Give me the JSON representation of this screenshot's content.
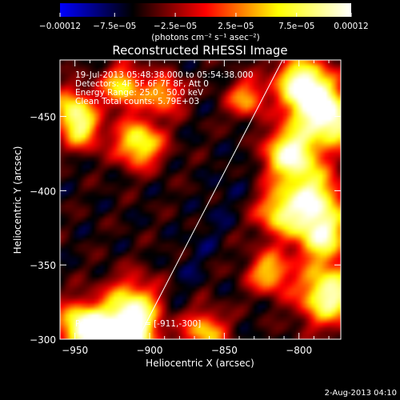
{
  "chart_data": {
    "type": "heatmap",
    "title": "Reconstructed RHESSI Image",
    "xlabel": "Heliocentric X (arcsec)",
    "ylabel": "Heliocentric Y (arcsec)",
    "xlim": [
      -960,
      -772
    ],
    "ylim": [
      -488,
      -300
    ],
    "x_ticks": [
      -950,
      -900,
      -850,
      -800
    ],
    "y_ticks": [
      -300,
      -350,
      -400,
      -450
    ],
    "x_tick_labels": [
      "−950",
      "−900",
      "−850",
      "−800"
    ],
    "y_tick_labels": [
      "−300",
      "−350",
      "−400",
      "−450"
    ],
    "colorbar": {
      "min": -0.00012,
      "max": 0.00012,
      "tick_values": [
        -0.00012,
        -7.5e-05,
        -2.5e-05,
        2.5e-05,
        7.5e-05,
        0.00012
      ],
      "tick_labels": [
        "−0.00012",
        "−7.5e−05",
        "−2.5e−05",
        "2.5e−05",
        "7.5e−05",
        "0.00012"
      ],
      "unit_label": "(photons cm⁻² s⁻¹ asec⁻²)",
      "colors": [
        "#0000ff",
        "#000000",
        "#ff0000",
        "#ffff00",
        "#ffffff"
      ]
    },
    "annotations": [
      "19-Jul-2013 05:48:38.000 to 05:54:38.000",
      "Detectors: 4F 5F 6F 7F 8F, Att 0",
      "Energy Range: 25.0 - 50.0 keV",
      "Clean     Total counts: 5.79E+03"
    ],
    "peak": {
      "label": "Position of Peak = [-911,-300]",
      "x": -911,
      "y": -300
    },
    "limb_line": {
      "x": [
        -908,
        -811
      ],
      "y": [
        -300,
        -488
      ]
    },
    "sources": [
      {
        "x": -914,
        "y": -300,
        "level": 1.0,
        "size": 12
      },
      {
        "x": -912,
        "y": -320,
        "level": 0.7,
        "size": 14
      },
      {
        "x": -948,
        "y": -310,
        "level": 0.6,
        "size": 11
      },
      {
        "x": -937,
        "y": -305,
        "level": 0.45,
        "size": 9
      },
      {
        "x": -952,
        "y": -455,
        "level": 0.55,
        "size": 10
      },
      {
        "x": -907,
        "y": -432,
        "level": 0.7,
        "size": 11
      },
      {
        "x": -918,
        "y": -470,
        "level": 0.55,
        "size": 10
      },
      {
        "x": -945,
        "y": -440,
        "level": 0.4,
        "size": 9
      },
      {
        "x": -863,
        "y": -305,
        "level": 0.45,
        "size": 10
      },
      {
        "x": -890,
        "y": -465,
        "level": 0.4,
        "size": 9
      },
      {
        "x": -835,
        "y": -462,
        "level": 0.35,
        "size": 9
      },
      {
        "x": -813,
        "y": -385,
        "level": 0.5,
        "size": 11
      },
      {
        "x": -820,
        "y": -345,
        "level": 0.45,
        "size": 10
      },
      {
        "x": -805,
        "y": -425,
        "level": 0.95,
        "size": 13
      },
      {
        "x": -790,
        "y": -395,
        "level": 0.7,
        "size": 13
      },
      {
        "x": -780,
        "y": -330,
        "level": 0.9,
        "size": 14
      },
      {
        "x": -785,
        "y": -370,
        "level": 0.75,
        "size": 12
      },
      {
        "x": -790,
        "y": -460,
        "level": 0.8,
        "size": 13
      },
      {
        "x": -800,
        "y": -475,
        "level": 0.65,
        "size": 12
      },
      {
        "x": -775,
        "y": -445,
        "level": 0.6,
        "size": 11
      }
    ],
    "background_level": -0.45
  },
  "footer": {
    "timestamp": "2-Aug-2013 04:10"
  }
}
